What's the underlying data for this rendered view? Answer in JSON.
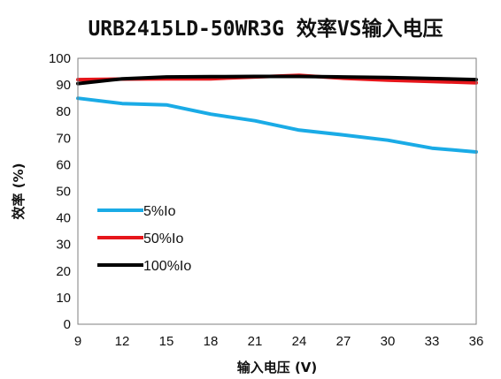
{
  "chart_data": {
    "type": "line",
    "title": "URB2415LD-50WR3G 效率VS输入电压",
    "xlabel": "输入电压 (V)",
    "ylabel": "效率 (%)",
    "xlim": [
      9,
      36
    ],
    "ylim": [
      0,
      100
    ],
    "x_ticks": [
      9,
      12,
      15,
      18,
      21,
      24,
      27,
      30,
      33,
      36
    ],
    "y_ticks": [
      0,
      10,
      20,
      30,
      40,
      50,
      60,
      70,
      80,
      90,
      100
    ],
    "grid": false,
    "legend_position": "left-middle",
    "series": [
      {
        "name": "5%Io",
        "color": "#1aabe6",
        "x": [
          9,
          12,
          15,
          18,
          21,
          24,
          27,
          30,
          33,
          36
        ],
        "y": [
          85,
          83,
          82.5,
          79,
          76.5,
          73,
          71.2,
          69.2,
          66.2,
          64.8
        ]
      },
      {
        "name": "50%Io",
        "color": "#e6161b",
        "x": [
          9,
          12,
          15,
          18,
          21,
          24,
          27,
          30,
          33,
          36
        ],
        "y": [
          92,
          92.2,
          92.3,
          92.3,
          93,
          93.6,
          92.5,
          91.8,
          91.3,
          90.8
        ]
      },
      {
        "name": "100%Io",
        "color": "#000000",
        "x": [
          9,
          12,
          15,
          18,
          21,
          24,
          27,
          30,
          33,
          36
        ],
        "y": [
          90.5,
          92.3,
          93,
          93.1,
          93.2,
          93.2,
          93,
          92.8,
          92.4,
          92
        ]
      }
    ]
  }
}
